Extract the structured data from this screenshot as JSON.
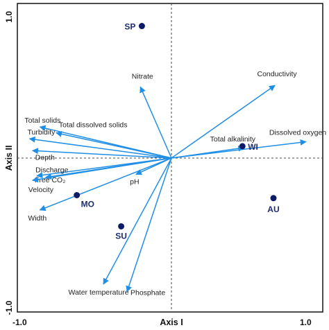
{
  "chart_data": {
    "type": "scatter",
    "subtype": "biplot",
    "xlabel": "Axis I",
    "ylabel": "Axis II",
    "xlim": [
      -1.0,
      1.0
    ],
    "ylim": [
      -1.0,
      1.0
    ],
    "x_ticks": [
      "-1.0",
      "1.0"
    ],
    "y_ticks": [
      "-1.0",
      "1.0"
    ],
    "arrow_color": "#1f8ee6",
    "point_color": "#0d1a66",
    "vectors": [
      {
        "label": "Nitrate",
        "x": -0.21,
        "y": 0.48
      },
      {
        "label": "Conductivity",
        "x": 0.7,
        "y": 0.49
      },
      {
        "label": "Total solids",
        "x": -0.89,
        "y": 0.21
      },
      {
        "label": "Total dissolved solids",
        "x": -0.78,
        "y": 0.17
      },
      {
        "label": "Turbidity",
        "x": -0.96,
        "y": 0.13
      },
      {
        "label": "Depth",
        "x": -0.94,
        "y": 0.05
      },
      {
        "label": "Total alkalinity",
        "x": 0.49,
        "y": 0.07
      },
      {
        "label": "Dissolved oxygen",
        "x": 0.91,
        "y": 0.11
      },
      {
        "label": "Discharge",
        "x": -0.91,
        "y": -0.12
      },
      {
        "label": "Free CO₂",
        "x": -0.85,
        "y": -0.13
      },
      {
        "label": "Velocity",
        "x": -0.94,
        "y": -0.15
      },
      {
        "label": "pH",
        "x": -0.24,
        "y": -0.11
      },
      {
        "label": "Width",
        "x": -0.89,
        "y": -0.35
      },
      {
        "label": "Water temperature",
        "x": -0.46,
        "y": -0.85
      },
      {
        "label": "Phosphate",
        "x": -0.3,
        "y": -0.9
      }
    ],
    "points": [
      {
        "label": "SP",
        "x": -0.2,
        "y": 0.89
      },
      {
        "label": "WI",
        "x": 0.48,
        "y": 0.08
      },
      {
        "label": "AU",
        "x": 0.69,
        "y": -0.27
      },
      {
        "label": "MO",
        "x": -0.64,
        "y": -0.25
      },
      {
        "label": "SU",
        "x": -0.34,
        "y": -0.46
      }
    ]
  }
}
